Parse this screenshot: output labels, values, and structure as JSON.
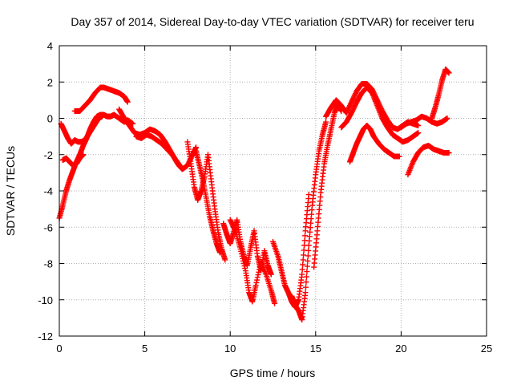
{
  "chart_data": {
    "type": "scatter",
    "title": "Day 357 of 2014, Sidereal Day-to-day VTEC variation (SDTVAR) for receiver teru",
    "xlabel": "GPS time / hours",
    "ylabel": "SDTVAR / TECUs",
    "xlim": [
      0,
      25
    ],
    "ylim": [
      -12,
      4
    ],
    "xticks": [
      0,
      5,
      10,
      15,
      20,
      25
    ],
    "yticks": [
      4,
      2,
      0,
      -2,
      -4,
      -6,
      -8,
      -10,
      -12
    ],
    "grid": true,
    "marker": "+",
    "color": "#ff0000",
    "series": [
      {
        "x": [
          0.0,
          0.2,
          0.4,
          0.6,
          0.8,
          1.0,
          1.2,
          1.4,
          1.6,
          1.8,
          2.0,
          2.2,
          2.4,
          2.6,
          2.8,
          3.0,
          3.2,
          3.5,
          3.8,
          4.0,
          4.3
        ],
        "y": [
          -5.5,
          -4.8,
          -4.0,
          -3.4,
          -2.9,
          -2.4,
          -2.0,
          -1.5,
          -1.1,
          -0.6,
          -0.2,
          0.1,
          0.2,
          0.2,
          0.1,
          0.1,
          0.2,
          0.0,
          -0.2,
          -0.1,
          -0.3
        ]
      },
      {
        "x": [
          0.1,
          0.3,
          0.5,
          0.7,
          0.9,
          1.1,
          1.3,
          1.5,
          1.7,
          1.9,
          2.1,
          2.3,
          2.5
        ],
        "y": [
          -0.3,
          -0.7,
          -1.1,
          -1.4,
          -1.2,
          -1.3,
          -1.3,
          -1.2,
          -0.9,
          -0.6,
          -0.3,
          0.0,
          0.1
        ]
      },
      {
        "x": [
          0.2,
          0.4,
          0.6,
          0.8,
          1.0,
          1.2,
          1.4
        ],
        "y": [
          -2.3,
          -2.2,
          -2.4,
          -2.6,
          -2.5,
          -2.2,
          -2.0
        ]
      },
      {
        "x": [
          0.9,
          1.2,
          1.5,
          1.8,
          2.1,
          2.4,
          2.6,
          2.9,
          3.2,
          3.5,
          3.8,
          4.0
        ],
        "y": [
          0.4,
          0.4,
          0.7,
          1.0,
          1.4,
          1.7,
          1.7,
          1.6,
          1.5,
          1.4,
          1.2,
          0.9
        ]
      },
      {
        "x": [
          3.5,
          3.8,
          4.1,
          4.4,
          4.7,
          5.0,
          5.3,
          5.6,
          5.9,
          6.2,
          6.5,
          6.8,
          7.0,
          7.2,
          7.5,
          7.8,
          8.0
        ],
        "y": [
          0.5,
          0.0,
          -0.4,
          -0.8,
          -0.9,
          -0.8,
          -0.6,
          -0.7,
          -0.9,
          -1.3,
          -1.8,
          -2.3,
          -2.6,
          -2.8,
          -2.6,
          -2.0,
          -1.6
        ]
      },
      {
        "x": [
          4.5,
          4.8,
          5.1,
          5.4,
          5.7,
          6.0,
          6.3,
          6.6,
          6.9,
          7.2
        ],
        "y": [
          -1.0,
          -1.1,
          -0.9,
          -1.0,
          -1.2,
          -1.4,
          -1.7,
          -2.0,
          -2.4,
          -2.8
        ]
      },
      {
        "x": [
          7.5,
          7.7,
          7.9,
          8.1,
          8.3,
          8.5,
          8.7,
          8.9,
          9.1,
          9.3,
          9.5,
          9.7
        ],
        "y": [
          -1.3,
          -2.5,
          -3.8,
          -4.5,
          -4.0,
          -3.2,
          -2.0,
          -3.5,
          -5.0,
          -6.3,
          -7.2,
          -7.8
        ]
      },
      {
        "x": [
          8.0,
          8.2,
          8.4,
          8.6,
          8.8,
          9.0,
          9.2,
          9.4
        ],
        "y": [
          -1.8,
          -2.6,
          -3.4,
          -4.4,
          -5.4,
          -6.2,
          -6.9,
          -7.4
        ]
      },
      {
        "x": [
          9.6,
          9.8,
          10.0,
          10.2,
          10.4,
          10.6,
          10.8,
          11.0,
          11.2,
          11.4,
          11.6,
          11.8,
          12.0,
          12.2,
          12.4
        ],
        "y": [
          -5.8,
          -6.4,
          -6.9,
          -6.3,
          -5.6,
          -6.8,
          -7.6,
          -8.1,
          -7.1,
          -6.2,
          -7.6,
          -8.4,
          -7.3,
          -8.1,
          -8.6
        ]
      },
      {
        "x": [
          10.0,
          10.3,
          10.6,
          10.9,
          11.1,
          11.3,
          11.5,
          11.8,
          12.1,
          12.4,
          12.6
        ],
        "y": [
          -5.6,
          -6.2,
          -7.2,
          -8.4,
          -9.6,
          -10.1,
          -9.2,
          -7.9,
          -8.6,
          -9.5,
          -10.2
        ]
      },
      {
        "x": [
          12.5,
          12.8,
          13.0,
          13.2,
          13.4,
          13.6,
          13.8,
          14.0,
          14.2,
          14.4,
          14.6
        ],
        "y": [
          -6.8,
          -7.6,
          -8.4,
          -9.2,
          -9.6,
          -10.1,
          -10.4,
          -10.0,
          -8.6,
          -6.2,
          -4.2
        ]
      },
      {
        "x": [
          13.6,
          13.8,
          14.0,
          14.2,
          14.4,
          14.6,
          14.8,
          15.0,
          15.2,
          15.4,
          15.6
        ],
        "y": [
          -9.8,
          -10.3,
          -10.6,
          -11.1,
          -9.6,
          -7.0,
          -4.8,
          -3.1,
          -1.8,
          -0.9,
          -0.2
        ]
      },
      {
        "x": [
          14.9,
          15.1,
          15.3,
          15.5,
          15.7,
          15.9,
          16.1,
          16.3,
          16.5
        ],
        "y": [
          -8.2,
          -6.2,
          -4.1,
          -2.5,
          -1.5,
          -0.6,
          0.3,
          0.8,
          0.4
        ]
      },
      {
        "x": [
          15.6,
          15.9,
          16.2,
          16.5,
          16.8,
          17.1,
          17.4,
          17.7,
          18.0,
          18.3,
          18.6,
          18.9,
          19.2,
          19.5,
          19.8,
          20.1,
          20.4,
          20.7,
          21.0
        ],
        "y": [
          0.1,
          0.6,
          1.0,
          0.7,
          0.3,
          0.9,
          1.5,
          1.9,
          1.9,
          1.6,
          1.0,
          0.4,
          -0.1,
          -0.5,
          -0.6,
          -0.4,
          -0.2,
          -0.3,
          -0.4
        ]
      },
      {
        "x": [
          16.5,
          16.8,
          17.1,
          17.4,
          17.7,
          18.0,
          18.3,
          18.6,
          18.9,
          19.2,
          19.5,
          19.8,
          20.1,
          20.4,
          20.7,
          21.0
        ],
        "y": [
          -0.5,
          -0.2,
          0.3,
          0.9,
          1.4,
          1.7,
          1.4,
          0.7,
          0.0,
          -0.5,
          -0.9,
          -1.1,
          -1.3,
          -1.2,
          -1.0,
          -0.8
        ]
      },
      {
        "x": [
          17.0,
          17.2,
          17.4,
          17.6,
          17.8,
          18.0,
          18.2,
          18.4,
          18.7,
          19.0,
          19.3,
          19.6,
          19.9
        ],
        "y": [
          -2.4,
          -1.9,
          -1.4,
          -1.0,
          -0.6,
          -0.4,
          -0.6,
          -1.0,
          -1.4,
          -1.7,
          -1.9,
          -2.1,
          -2.1
        ]
      },
      {
        "x": [
          20.0,
          20.3,
          20.6,
          20.9,
          21.2,
          21.5,
          21.8,
          22.1,
          22.4,
          22.7
        ],
        "y": [
          -0.5,
          -0.3,
          -0.2,
          -0.1,
          0.1,
          0.0,
          -0.2,
          -0.3,
          -0.2,
          0.0
        ]
      },
      {
        "x": [
          20.4,
          20.7,
          21.0,
          21.3,
          21.6,
          21.9,
          22.2,
          22.5,
          22.8
        ],
        "y": [
          -3.1,
          -2.4,
          -1.9,
          -1.6,
          -1.5,
          -1.7,
          -1.8,
          -1.9,
          -1.9
        ]
      },
      {
        "x": [
          21.8,
          22.0,
          22.2,
          22.4,
          22.6,
          22.8
        ],
        "y": [
          0.0,
          0.6,
          1.3,
          2.1,
          2.7,
          2.5
        ]
      }
    ]
  }
}
